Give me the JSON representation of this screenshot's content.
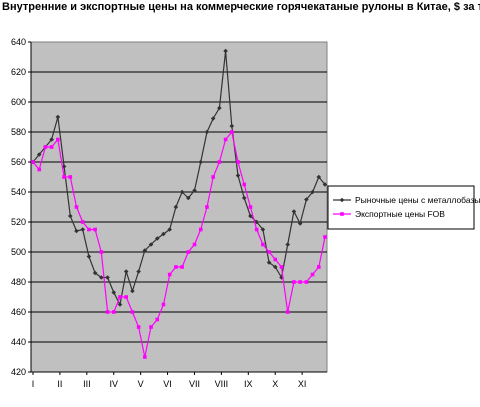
{
  "chart_data": {
    "type": "line",
    "title": "Внутренние и экспортные цены на коммерческие горячекатаные рулоны в Китае, $ за т",
    "xlabel": "",
    "ylabel": "",
    "ylim": [
      420,
      640
    ],
    "yticks": [
      420,
      440,
      460,
      480,
      500,
      520,
      540,
      560,
      580,
      600,
      620,
      640
    ],
    "grid": "horizontal",
    "plot_background": "#c0c0c0",
    "legend_position": "right",
    "x_tick_labels": [
      "I",
      "II",
      "III",
      "IV",
      "V",
      "VI",
      "VII",
      "VIII",
      "IX",
      "X",
      "XI"
    ],
    "x_count": 48,
    "series": [
      {
        "name": "Рыночные цены с металлобазы",
        "color": "#333333",
        "marker": "diamond",
        "values": [
          560,
          565,
          570,
          575,
          590,
          557,
          524,
          514,
          515,
          497,
          486,
          483,
          483,
          473,
          465,
          487,
          474,
          487,
          501,
          505,
          509,
          512,
          515,
          530,
          540,
          536,
          541,
          560,
          580,
          589,
          596,
          634,
          584,
          551,
          536,
          524,
          520,
          515,
          493,
          490,
          483,
          505,
          527,
          519,
          535,
          540,
          550,
          545
        ]
      },
      {
        "name": "Экспортные цены FOB",
        "color": "#ff00ff",
        "marker": "square",
        "values": [
          560,
          555,
          570,
          570,
          575,
          550,
          550,
          530,
          520,
          515,
          515,
          500,
          460,
          460,
          470,
          470,
          460,
          450,
          430,
          450,
          455,
          465,
          485,
          490,
          490,
          500,
          505,
          515,
          530,
          550,
          560,
          575,
          580,
          560,
          545,
          530,
          515,
          505,
          500,
          495,
          490,
          460,
          480,
          480,
          480,
          485,
          490,
          510
        ]
      }
    ]
  }
}
